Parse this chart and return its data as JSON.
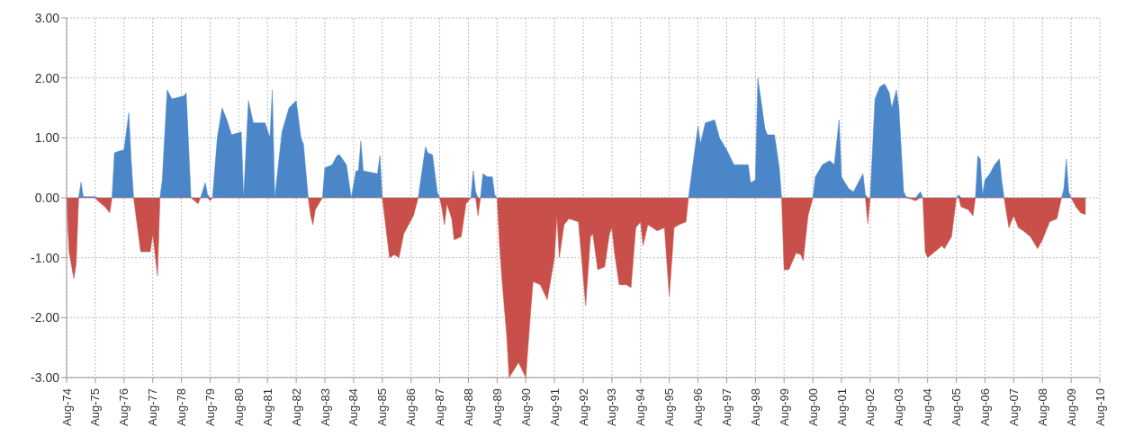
{
  "chart_data": {
    "type": "area",
    "x": [
      "1974-08",
      "1974-09",
      "1974-11",
      "1974-12",
      "1975-01",
      "1975-02",
      "1975-03",
      "1975-08",
      "1975-09",
      "1975-12",
      "1976-02",
      "1976-03",
      "1976-04",
      "1976-06",
      "1976-08",
      "1976-10",
      "1976-11",
      "1976-12",
      "1977-03",
      "1977-07",
      "1977-08",
      "1977-10",
      "1977-11",
      "1977-12",
      "1978-02",
      "1978-04",
      "1978-09",
      "1978-10",
      "1978-12",
      "1979-03",
      "1979-04",
      "1979-06",
      "1979-07",
      "1979-08",
      "1979-09",
      "1979-11",
      "1980-01",
      "1980-03",
      "1980-05",
      "1980-09",
      "1980-10",
      "1980-12",
      "1981-02",
      "1981-07",
      "1981-09",
      "1981-10",
      "1981-11",
      "1982-02",
      "1982-05",
      "1982-08",
      "1982-10",
      "1982-11",
      "1983-01",
      "1983-02",
      "1983-03",
      "1983-04",
      "1983-07",
      "1983-08",
      "1983-11",
      "1984-01",
      "1984-02",
      "1984-05",
      "1984-07",
      "1984-09",
      "1984-10",
      "1984-11",
      "1984-12",
      "1985-06",
      "1985-07",
      "1985-08",
      "1985-11",
      "1986-01",
      "1986-03",
      "1986-05",
      "1986-09",
      "1986-11",
      "1987-02",
      "1987-03",
      "1987-05",
      "1987-07",
      "1987-08",
      "1987-09",
      "1987-10",
      "1987-11",
      "1988-01",
      "1988-02",
      "1988-05",
      "1988-07",
      "1988-09",
      "1988-10",
      "1988-11",
      "1988-12",
      "1989-01",
      "1989-02",
      "1989-04",
      "1989-06",
      "1989-07",
      "1989-08",
      "1989-09",
      "1989-10",
      "1989-12",
      "1990-01",
      "1990-05",
      "1990-08",
      "1990-10",
      "1990-11",
      "1991-02",
      "1991-05",
      "1991-08",
      "1991-09",
      "1991-10",
      "1991-12",
      "1992-02",
      "1992-06",
      "1992-09",
      "1992-11",
      "1992-12",
      "1993-02",
      "1993-05",
      "1993-07",
      "1993-08",
      "1993-09",
      "1993-11",
      "1994-02",
      "1994-04",
      "1994-06",
      "1994-08",
      "1994-09",
      "1994-11",
      "1995-01",
      "1995-03",
      "1995-06",
      "1995-08",
      "1995-10",
      "1995-12",
      "1996-03",
      "1996-04",
      "1996-08",
      "1996-09",
      "1996-11",
      "1997-03",
      "1997-05",
      "1997-08",
      "1997-11",
      "1998-05",
      "1998-06",
      "1998-08",
      "1998-09",
      "1998-12",
      "1999-01",
      "1999-04",
      "1999-06",
      "1999-07",
      "1999-08",
      "1999-10",
      "2000-01",
      "2000-03",
      "2000-04",
      "2000-06",
      "2000-08",
      "2000-09",
      "2000-12",
      "2001-03",
      "2001-05",
      "2001-07",
      "2001-08",
      "2001-11",
      "2002-01",
      "2002-03",
      "2002-05",
      "2002-06",
      "2002-07",
      "2002-08",
      "2002-10",
      "2002-12",
      "2003-02",
      "2003-04",
      "2003-05",
      "2003-07",
      "2003-08",
      "2003-10",
      "2003-11",
      "2004-01",
      "2004-03",
      "2004-05",
      "2004-06",
      "2004-07",
      "2004-08",
      "2004-11",
      "2005-02",
      "2005-03",
      "2005-06",
      "2005-08",
      "2005-09",
      "2005-10",
      "2006-01",
      "2006-03",
      "2006-04",
      "2006-05",
      "2006-06",
      "2006-07",
      "2006-08",
      "2006-10",
      "2006-12",
      "2007-02",
      "2007-03",
      "2007-04",
      "2007-06",
      "2007-08",
      "2007-10",
      "2007-12",
      "2008-03",
      "2008-06",
      "2008-08",
      "2008-11",
      "2009-02",
      "2009-04",
      "2009-05",
      "2009-06",
      "2009-07",
      "2009-08",
      "2009-10",
      "2009-12",
      "2010-02"
    ],
    "series": [
      {
        "color": "#4a86c8",
        "values": [
          0,
          0,
          0,
          0,
          0,
          0.26,
          0.02,
          0.02,
          0,
          0,
          0,
          0,
          0.75,
          0.78,
          0.8,
          1.42,
          0.6,
          0,
          0,
          0,
          0,
          0,
          0,
          0.3,
          1.8,
          1.65,
          1.7,
          1.75,
          0,
          0,
          0,
          0.25,
          0.05,
          0,
          0,
          1.0,
          1.5,
          1.3,
          1.05,
          1.1,
          0,
          1.62,
          1.25,
          1.25,
          1.0,
          1.8,
          0,
          1.1,
          1.5,
          1.62,
          1.0,
          0.9,
          0,
          0,
          0,
          0,
          0,
          0.5,
          0.55,
          0.7,
          0.72,
          0.55,
          0,
          0.45,
          0.45,
          0.95,
          0.45,
          0.4,
          0.7,
          0,
          0,
          0,
          0,
          0,
          0,
          0,
          0.85,
          0.75,
          0.72,
          0.1,
          0,
          0,
          0,
          0,
          0,
          0,
          0,
          0,
          0,
          0.45,
          0.1,
          0,
          0,
          0.4,
          0.35,
          0.35,
          0.05,
          0,
          0,
          0,
          0,
          0,
          0,
          0,
          0,
          0,
          0,
          0,
          0,
          0,
          0,
          0,
          0,
          0,
          0,
          0,
          0,
          0,
          0,
          0,
          0,
          0,
          0,
          0,
          0,
          0,
          0,
          0,
          0,
          0,
          0,
          0,
          0,
          0,
          0,
          0,
          0,
          1.2,
          0.9,
          1.25,
          1.3,
          1.0,
          0.8,
          0.55,
          0.55,
          0.25,
          0.3,
          2.0,
          1.15,
          1.05,
          1.05,
          0.5,
          0,
          0,
          0,
          0,
          0,
          0,
          0,
          0,
          0.35,
          0.55,
          0.62,
          0.55,
          1.3,
          0.35,
          0.15,
          0.1,
          0.25,
          0.4,
          0.05,
          0,
          0,
          1.65,
          1.85,
          1.9,
          1.75,
          1.5,
          1.8,
          1.5,
          0.1,
          0.02,
          0,
          0,
          0.1,
          0,
          0,
          0,
          0,
          0,
          0,
          0,
          0,
          0.05,
          0,
          0,
          0,
          0,
          0.7,
          0.65,
          0.05,
          0.3,
          0.4,
          0.55,
          0.65,
          0.3,
          0,
          0,
          0,
          0,
          0,
          0,
          0,
          0,
          0,
          0,
          0,
          0.15,
          0.65,
          0.1,
          0,
          0,
          0,
          0
        ]
      },
      {
        "color": "#c9504a",
        "values": [
          0,
          -0.9,
          -1.35,
          -1.1,
          0,
          0,
          0,
          0,
          -0.05,
          -0.15,
          -0.25,
          0,
          0,
          0,
          0,
          0,
          0,
          0,
          -0.9,
          -0.9,
          -0.6,
          -1.3,
          0,
          0,
          0,
          0,
          0,
          0,
          0,
          -0.1,
          0,
          0,
          0,
          -0.05,
          0,
          0,
          0,
          0,
          0,
          0,
          0,
          0,
          0,
          0,
          0,
          0,
          0,
          0,
          0,
          0,
          0,
          0,
          0,
          -0.3,
          -0.45,
          -0.2,
          0,
          0,
          0,
          0,
          0,
          0,
          0,
          0,
          0,
          0,
          0,
          0,
          0,
          0,
          -1.0,
          -0.95,
          -1.0,
          -0.6,
          -0.3,
          0,
          0,
          0,
          0,
          0,
          0,
          -0.2,
          -0.45,
          -0.1,
          -0.35,
          -0.7,
          -0.65,
          -0.1,
          0,
          0,
          0,
          -0.3,
          0,
          0,
          0,
          0,
          0,
          0,
          -0.8,
          -1.35,
          -2.3,
          -3.0,
          -2.75,
          -3.0,
          -1.9,
          -1.4,
          -1.45,
          -1.7,
          -1.0,
          -0.3,
          -1.0,
          -0.45,
          -0.35,
          -0.4,
          -1.8,
          -0.65,
          -0.6,
          -1.2,
          -1.15,
          -0.6,
          -0.5,
          -0.9,
          -1.45,
          -1.45,
          -1.5,
          -0.5,
          -0.4,
          -0.8,
          -0.45,
          -0.5,
          -0.55,
          -0.5,
          -1.65,
          -0.5,
          -0.45,
          -0.4,
          0,
          0,
          0,
          0,
          0,
          0,
          0,
          0,
          0,
          0,
          0,
          0,
          0,
          0,
          0,
          0,
          0,
          -1.2,
          -1.2,
          -0.92,
          -0.95,
          -1.05,
          -0.3,
          0,
          0,
          0,
          0,
          0,
          0,
          0,
          0,
          0,
          0,
          0,
          0,
          -0.43,
          0,
          0,
          0,
          0,
          0,
          0,
          0,
          0,
          0,
          0,
          -0.02,
          -0.05,
          0,
          0,
          -0.9,
          -1.0,
          -0.9,
          -0.8,
          -0.85,
          -0.65,
          0,
          0,
          -0.15,
          -0.2,
          -0.3,
          0,
          0,
          0,
          0,
          0,
          0,
          0,
          0,
          0,
          0,
          -0.5,
          -0.3,
          -0.5,
          -0.55,
          -0.65,
          -0.85,
          -0.7,
          -0.4,
          -0.35,
          0,
          0,
          0,
          0,
          0,
          -0.15,
          -0.25,
          -0.28
        ]
      }
    ],
    "xlim": [
      "1974-08",
      "2010-08"
    ],
    "xticks": [
      {
        "value": "1974-08",
        "label": "Aug-74"
      },
      {
        "value": "1975-08",
        "label": "Aug-75"
      },
      {
        "value": "1976-08",
        "label": "Aug-76"
      },
      {
        "value": "1977-08",
        "label": "Aug-77"
      },
      {
        "value": "1978-08",
        "label": "Aug-78"
      },
      {
        "value": "1979-08",
        "label": "Aug-79"
      },
      {
        "value": "1980-08",
        "label": "Aug-80"
      },
      {
        "value": "1981-08",
        "label": "Aug-81"
      },
      {
        "value": "1982-08",
        "label": "Aug-82"
      },
      {
        "value": "1983-08",
        "label": "Aug-83"
      },
      {
        "value": "1984-08",
        "label": "Aug-84"
      },
      {
        "value": "1985-08",
        "label": "Aug-85"
      },
      {
        "value": "1986-08",
        "label": "Aug-86"
      },
      {
        "value": "1987-08",
        "label": "Aug-87"
      },
      {
        "value": "1988-08",
        "label": "Aug-88"
      },
      {
        "value": "1989-08",
        "label": "Aug-89"
      },
      {
        "value": "1990-08",
        "label": "Aug-90"
      },
      {
        "value": "1991-08",
        "label": "Aug-91"
      },
      {
        "value": "1992-08",
        "label": "Aug-92"
      },
      {
        "value": "1993-08",
        "label": "Aug-93"
      },
      {
        "value": "1994-08",
        "label": "Aug-94"
      },
      {
        "value": "1995-08",
        "label": "Aug-95"
      },
      {
        "value": "1996-08",
        "label": "Aug-96"
      },
      {
        "value": "1997-08",
        "label": "Aug-97"
      },
      {
        "value": "1998-08",
        "label": "Aug-98"
      },
      {
        "value": "1999-08",
        "label": "Aug-99"
      },
      {
        "value": "2000-08",
        "label": "Aug-00"
      },
      {
        "value": "2001-08",
        "label": "Aug-01"
      },
      {
        "value": "2002-08",
        "label": "Aug-02"
      },
      {
        "value": "2003-08",
        "label": "Aug-03"
      },
      {
        "value": "2004-08",
        "label": "Aug-04"
      },
      {
        "value": "2005-08",
        "label": "Aug-05"
      },
      {
        "value": "2006-08",
        "label": "Aug-06"
      },
      {
        "value": "2007-08",
        "label": "Aug-07"
      },
      {
        "value": "2008-08",
        "label": "Aug-08"
      },
      {
        "value": "2009-08",
        "label": "Aug-09"
      },
      {
        "value": "2010-08",
        "label": "Aug-10"
      }
    ],
    "ylim": [
      -3,
      3
    ],
    "yticks": [
      {
        "value": -3,
        "label": "-3.00"
      },
      {
        "value": -2,
        "label": "-2.00"
      },
      {
        "value": -1,
        "label": "-1.00"
      },
      {
        "value": 0,
        "label": "0.00"
      },
      {
        "value": 1,
        "label": "1.00"
      },
      {
        "value": 2,
        "label": "2.00"
      },
      {
        "value": 3,
        "label": "3.00"
      }
    ],
    "grid": true
  }
}
